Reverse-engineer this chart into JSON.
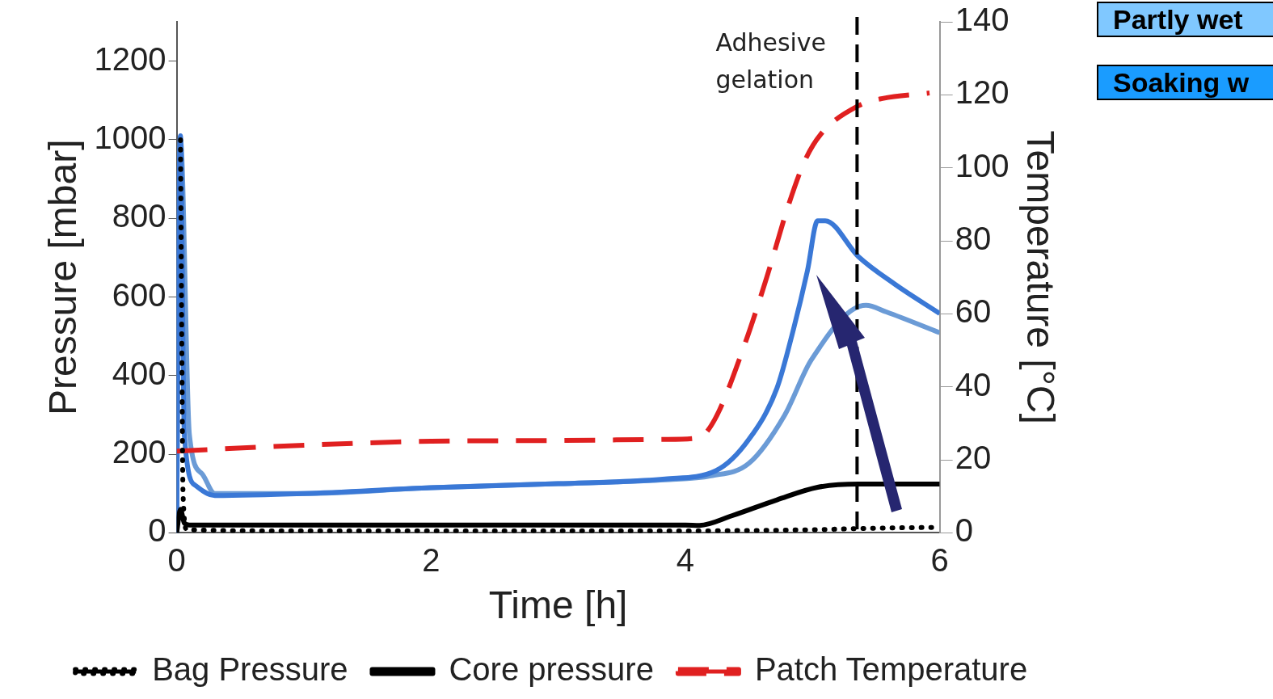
{
  "chart_data": {
    "type": "line",
    "xlabel": "Time [h]",
    "ylabel": "Pressure [mbar]",
    "y2label": "Temperature [°C]",
    "xlim": [
      0,
      6
    ],
    "xticks": [
      0,
      2,
      4,
      6
    ],
    "ylim": [
      0,
      1300
    ],
    "yticks": [
      0,
      200,
      400,
      600,
      800,
      1000,
      1200
    ],
    "y2lim": [
      0,
      140
    ],
    "y2ticks": [
      0,
      20,
      40,
      60,
      80,
      100,
      120,
      140
    ],
    "grid": false,
    "legend": "bottom",
    "marker": "none",
    "series": [
      {
        "name": "Bag Pressure",
        "color": "#000000",
        "line_style": "dotted",
        "x": [
          0.03,
          0.04,
          0.05,
          0.08,
          1,
          2,
          3,
          4,
          4.5,
          5,
          5.5,
          6
        ],
        "values": [
          1000,
          500,
          100,
          8,
          5,
          5,
          5,
          5,
          6,
          8,
          12,
          14
        ]
      },
      {
        "name": "Core pressure",
        "color": "#000000",
        "line_style": "solid",
        "x": [
          0,
          0.03,
          0.06,
          0.1,
          1,
          2,
          3,
          4,
          4.11,
          4.37,
          4.72,
          5.04,
          5.36,
          6
        ],
        "values": [
          0,
          60,
          25,
          20,
          20,
          20,
          20,
          20,
          19,
          44,
          84,
          116,
          124,
          124
        ]
      },
      {
        "name": "Patch Temperature",
        "color": "#e02020",
        "line_style": "dashed",
        "axis": "y2",
        "x": [
          0,
          1,
          2,
          3,
          3.84,
          4.1,
          4.23,
          4.46,
          4.64,
          4.81,
          4.94,
          5.06,
          5.36,
          5.55,
          5.92
        ],
        "values": [
          22.4,
          24,
          25.1,
          25.3,
          25.6,
          26,
          31,
          51,
          70,
          89.7,
          102,
          109,
          117,
          119,
          120.5
        ]
      },
      {
        "color": "#3a78d6",
        "line_style": "solid",
        "x": [
          0,
          0.02,
          0.03,
          0.06,
          0.15,
          0.3,
          1,
          2,
          3,
          3.84,
          4.24,
          4.5,
          4.72,
          4.85,
          4.96,
          5.04,
          5.1,
          5.36,
          5.65,
          6
        ],
        "values": [
          0,
          900,
          1010,
          250,
          120,
          95,
          100,
          115,
          125,
          137,
          158,
          238,
          368,
          518,
          667,
          794,
          794,
          703,
          632,
          558
        ]
      },
      {
        "color": "#6b9bd6",
        "line_style": "solid",
        "x": [
          0,
          0.02,
          0.03,
          0.1,
          0.2,
          0.3,
          1,
          2,
          3,
          3.84,
          4.2,
          4.5,
          4.78,
          4.99,
          5.42,
          5.58,
          6
        ],
        "values": [
          0,
          900,
          1000,
          250,
          150,
          100,
          100,
          115,
          125,
          135,
          145,
          177,
          299,
          440,
          579,
          562,
          509
        ]
      }
    ],
    "ref_lines": [
      {
        "axis": "x",
        "value": 5.35,
        "label": "Adhesive gelation",
        "color": "#000000",
        "line_style": "dashed"
      }
    ],
    "annotations": [
      "Partly wet",
      "Soaking w"
    ]
  }
}
